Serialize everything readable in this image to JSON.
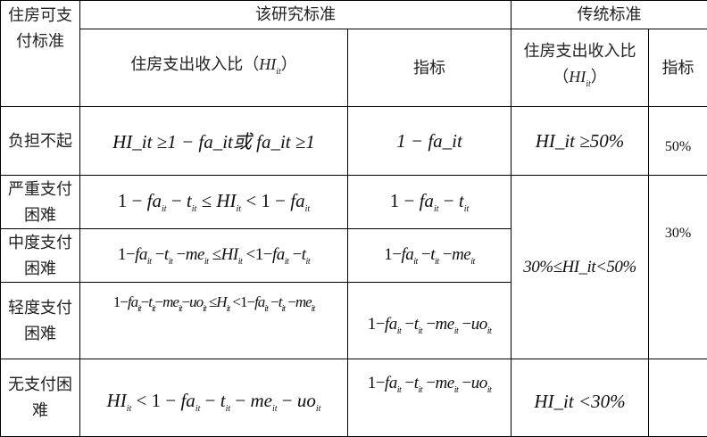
{
  "header": {
    "row_label": "住房可支付标准",
    "study_standard": "该研究标准",
    "traditional_standard": "传统标准",
    "study_ratio": "住房支出收入比（HI_it）",
    "study_indicator": "指标",
    "trad_ratio": "住房支出收入比（HI_it）",
    "trad_indicator": "指标"
  },
  "rows": [
    {
      "label": "负担不起",
      "ratio": "HI_it ≥1 − fa_it或 fa_it ≥1",
      "indicator": "1 − fa_it",
      "trad_ratio": "HI_it ≥50%",
      "trad_indicator": "50%"
    },
    {
      "label": "严重支付困难",
      "ratio": "1 − fa_it − t_it ≤ HI_it < 1 − fa_it",
      "indicator": "1 − fa_it − t_it"
    },
    {
      "label": "中度支付困难",
      "ratio": "1−fa_it −t_it −me_it ≤HI_it <1−fa_it −t_it",
      "indicator": "1−fa_it −t_it −me_it"
    },
    {
      "label": "轻度支付困难",
      "ratio": "1−fa_it−t_it−me_it−uo_it ≤H_it <1−fa_it −t_it −me_it",
      "indicator": "1−fa_it −t_it −me_it −uo_it"
    },
    {
      "label": "无支付困难",
      "ratio": "HI_it < 1 − fa_it − t_it − me_it − uo_it",
      "indicator": "1−fa_it −t_it −me_it −uo_it",
      "trad_ratio": "HI_it <30%"
    }
  ],
  "merged": {
    "trad_ratio_difficulty": "30%≤HI_it<50%",
    "trad_indicator_difficulty": "30%"
  }
}
